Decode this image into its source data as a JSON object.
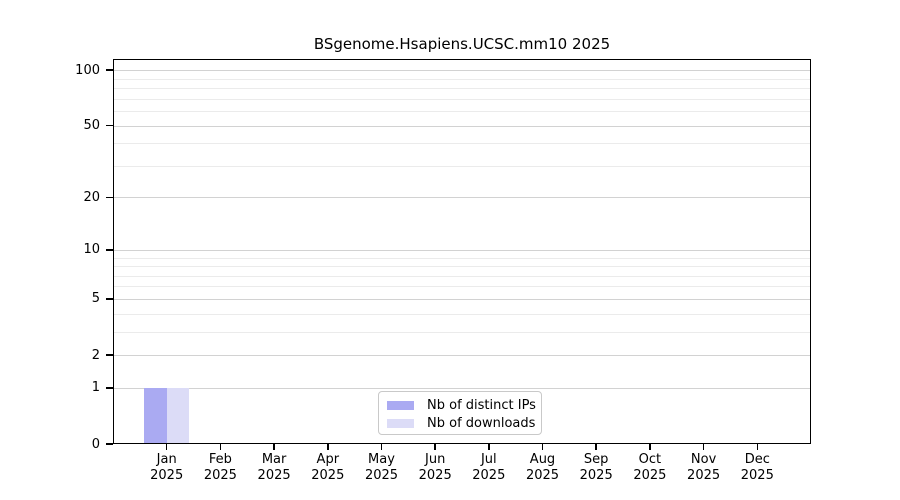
{
  "chart_data": {
    "type": "bar",
    "title": "BSgenome.Hsapiens.UCSC.mm10 2025",
    "categories": [
      "Jan",
      "Feb",
      "Mar",
      "Apr",
      "May",
      "Jun",
      "Jul",
      "Aug",
      "Sep",
      "Oct",
      "Nov",
      "Dec"
    ],
    "year": "2025",
    "series": [
      {
        "name": "Nb of distinct IPs",
        "color": "#aaaaf2",
        "values": [
          1,
          0,
          0,
          0,
          0,
          0,
          0,
          0,
          0,
          0,
          0,
          0
        ]
      },
      {
        "name": "Nb of downloads",
        "color": "#dcdcf7",
        "values": [
          1,
          0,
          0,
          0,
          0,
          0,
          0,
          0,
          0,
          0,
          0,
          0
        ]
      }
    ],
    "xlabel": "",
    "ylabel": "",
    "yscale": "log1p",
    "ylim": [
      0,
      115
    ],
    "yticks": [
      0,
      1,
      2,
      5,
      10,
      20,
      50,
      100
    ],
    "y_minor_gridlines": [
      3,
      4,
      6,
      7,
      8,
      9,
      30,
      40,
      60,
      70,
      80,
      90
    ],
    "grid": true,
    "legend_position": "lower-center-inside"
  },
  "colors": {
    "major_grid": "#d2d2d2",
    "minor_grid": "#ebebeb",
    "spine": "#000000",
    "legend_border": "#c9c9c9",
    "background": "#ffffff"
  }
}
